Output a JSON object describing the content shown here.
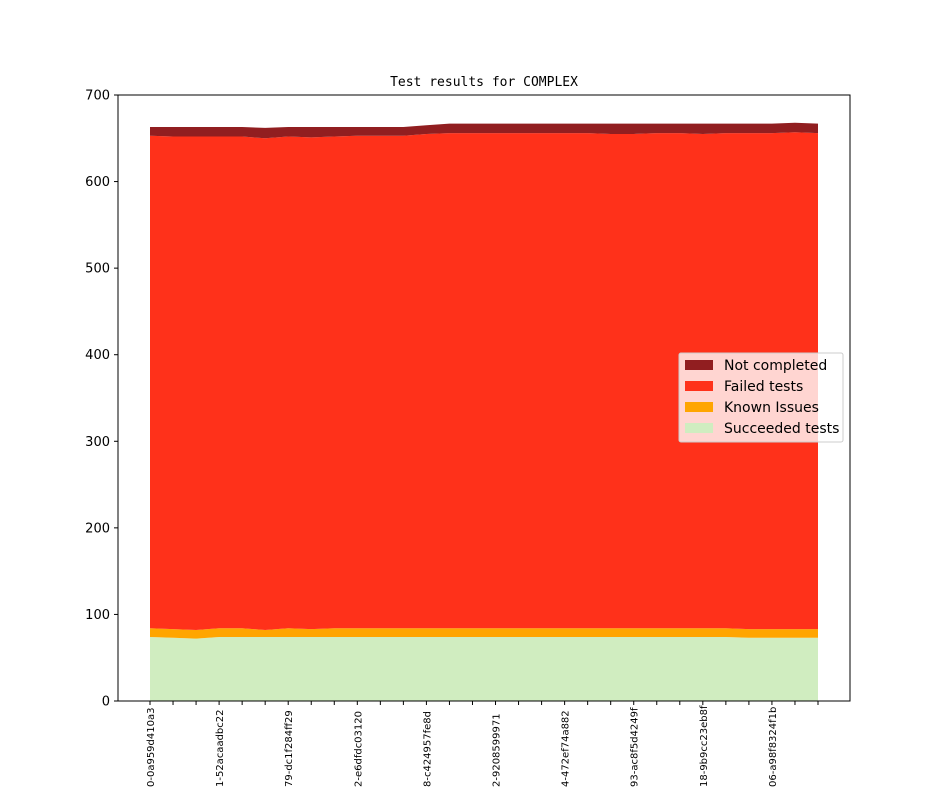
{
  "chart_data": {
    "type": "area",
    "stacked": true,
    "title": "Test results for COMPLEX",
    "xlabel": "",
    "ylabel": "",
    "ylim": [
      0,
      700
    ],
    "yticks": [
      0,
      100,
      200,
      300,
      400,
      500,
      600,
      700
    ],
    "grid": false,
    "legend_placement": "center-right",
    "num_points": 30,
    "x_tick_labels": [
      "0-0a959d410a3",
      "1-52acaadbc22",
      "79-dc1f284ff29",
      "2-e6dfdc03120",
      "8-c424957fe8d",
      "2-9208599971",
      "4-472ef74a882",
      "93-ac8f5d4249f",
      "18-9b9cc23eb8f",
      "06-a98f8324f1b"
    ],
    "legend_order": [
      "Not completed",
      "Failed tests",
      "Known Issues",
      "Succeeded tests"
    ],
    "series": [
      {
        "name": "Succeeded tests",
        "color": "#d0edc0",
        "values": [
          74,
          73,
          72,
          74,
          74,
          74,
          74,
          74,
          74,
          74,
          74,
          74,
          74,
          74,
          74,
          74,
          74,
          74,
          74,
          74,
          74,
          74,
          74,
          74,
          74,
          74,
          73,
          73,
          73,
          73
        ]
      },
      {
        "name": "Known Issues",
        "color": "#ffa500",
        "values": [
          10,
          10,
          10,
          10,
          10,
          8,
          10,
          9,
          10,
          10,
          10,
          10,
          10,
          10,
          10,
          10,
          10,
          10,
          10,
          10,
          10,
          10,
          10,
          10,
          10,
          10,
          10,
          10,
          10,
          10
        ]
      },
      {
        "name": "Failed tests",
        "color": "#ff311a",
        "values": [
          569,
          569,
          570,
          568,
          568,
          568,
          568,
          568,
          568,
          569,
          569,
          569,
          571,
          572,
          572,
          572,
          572,
          572,
          572,
          572,
          571,
          571,
          572,
          572,
          571,
          572,
          573,
          573,
          574,
          573
        ]
      },
      {
        "name": "Not completed",
        "color": "#911e20",
        "values": [
          10,
          11,
          11,
          11,
          11,
          12,
          11,
          12,
          11,
          10,
          10,
          10,
          10,
          11,
          11,
          11,
          11,
          11,
          11,
          11,
          12,
          12,
          11,
          11,
          12,
          11,
          11,
          11,
          11,
          11
        ]
      }
    ]
  }
}
